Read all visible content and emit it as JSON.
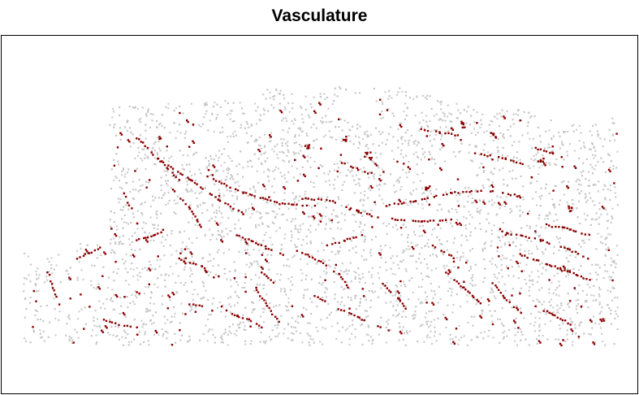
{
  "chart_data": {
    "type": "scatter",
    "title": "Vasculature",
    "xlabel": "",
    "ylabel": "",
    "grid": false,
    "axes_visible": false,
    "legend": "none",
    "colors": {
      "background_cells": "#c8c8c8",
      "vasculature_cells": "#8b0000",
      "frame": "#000000"
    },
    "series": [
      {
        "role": "background",
        "color": "#c8c8c8",
        "marker": "square",
        "description_visible": false
      },
      {
        "role": "highlighted",
        "color": "#8b0000",
        "marker": "square",
        "description_visible": false
      }
    ],
    "vessel_traces": [
      [
        [
          0.19,
          0.21
        ],
        [
          0.23,
          0.3
        ],
        [
          0.26,
          0.37
        ]
      ],
      [
        [
          0.22,
          0.28
        ],
        [
          0.28,
          0.37
        ],
        [
          0.33,
          0.45
        ],
        [
          0.37,
          0.5
        ]
      ],
      [
        [
          0.31,
          0.36
        ],
        [
          0.37,
          0.42
        ],
        [
          0.43,
          0.46
        ],
        [
          0.49,
          0.47
        ]
      ],
      [
        [
          0.47,
          0.44
        ],
        [
          0.52,
          0.45
        ],
        [
          0.55,
          0.48
        ],
        [
          0.6,
          0.52
        ]
      ],
      [
        [
          0.61,
          0.47
        ],
        [
          0.66,
          0.45
        ],
        [
          0.72,
          0.42
        ],
        [
          0.78,
          0.41
        ],
        [
          0.83,
          0.43
        ]
      ],
      [
        [
          0.62,
          0.52
        ],
        [
          0.67,
          0.53
        ],
        [
          0.72,
          0.52
        ]
      ],
      [
        [
          0.76,
          0.27
        ],
        [
          0.81,
          0.29
        ],
        [
          0.84,
          0.31
        ]
      ],
      [
        [
          0.86,
          0.25
        ],
        [
          0.89,
          0.27
        ],
        [
          0.91,
          0.29
        ]
      ],
      [
        [
          0.83,
          0.58
        ],
        [
          0.87,
          0.6
        ],
        [
          0.91,
          0.63
        ],
        [
          0.95,
          0.67
        ]
      ],
      [
        [
          0.83,
          0.65
        ],
        [
          0.88,
          0.69
        ],
        [
          0.92,
          0.72
        ],
        [
          0.96,
          0.76
        ]
      ],
      [
        [
          0.8,
          0.56
        ],
        [
          0.82,
          0.58
        ]
      ],
      [
        [
          0.88,
          0.54
        ],
        [
          0.92,
          0.56
        ],
        [
          0.95,
          0.58
        ]
      ],
      [
        [
          0.19,
          0.6
        ],
        [
          0.22,
          0.58
        ],
        [
          0.24,
          0.56
        ]
      ],
      [
        [
          0.09,
          0.67
        ],
        [
          0.11,
          0.65
        ],
        [
          0.13,
          0.63
        ]
      ],
      [
        [
          0.36,
          0.58
        ],
        [
          0.4,
          0.62
        ],
        [
          0.44,
          0.66
        ]
      ],
      [
        [
          0.46,
          0.64
        ],
        [
          0.5,
          0.68
        ],
        [
          0.53,
          0.73
        ],
        [
          0.55,
          0.79
        ]
      ],
      [
        [
          0.26,
          0.67
        ],
        [
          0.3,
          0.7
        ],
        [
          0.32,
          0.74
        ]
      ],
      [
        [
          0.39,
          0.78
        ],
        [
          0.41,
          0.85
        ],
        [
          0.43,
          0.91
        ]
      ],
      [
        [
          0.49,
          0.81
        ],
        [
          0.53,
          0.86
        ],
        [
          0.57,
          0.9
        ]
      ],
      [
        [
          0.6,
          0.76
        ],
        [
          0.63,
          0.82
        ],
        [
          0.65,
          0.88
        ]
      ],
      [
        [
          0.79,
          0.76
        ],
        [
          0.81,
          0.82
        ],
        [
          0.84,
          0.88
        ]
      ],
      [
        [
          0.71,
          0.72
        ],
        [
          0.74,
          0.78
        ],
        [
          0.77,
          0.84
        ]
      ],
      [
        [
          0.86,
          0.85
        ],
        [
          0.89,
          0.88
        ],
        [
          0.92,
          0.92
        ]
      ],
      [
        [
          0.13,
          0.9
        ],
        [
          0.16,
          0.92
        ],
        [
          0.19,
          0.93
        ]
      ],
      [
        [
          0.27,
          0.84
        ],
        [
          0.3,
          0.85
        ]
      ],
      [
        [
          0.4,
          0.72
        ],
        [
          0.42,
          0.76
        ]
      ],
      [
        [
          0.53,
          0.3
        ],
        [
          0.56,
          0.33
        ],
        [
          0.59,
          0.35
        ]
      ],
      [
        [
          0.67,
          0.18
        ],
        [
          0.7,
          0.19
        ],
        [
          0.73,
          0.2
        ]
      ],
      [
        [
          0.63,
          0.3
        ],
        [
          0.65,
          0.33
        ]
      ],
      [
        [
          0.25,
          0.41
        ],
        [
          0.28,
          0.48
        ],
        [
          0.3,
          0.55
        ]
      ],
      [
        [
          0.04,
          0.72
        ],
        [
          0.05,
          0.78
        ],
        [
          0.06,
          0.84
        ]
      ],
      [
        [
          0.17,
          0.42
        ],
        [
          0.18,
          0.48
        ]
      ],
      [
        [
          0.35,
          0.88
        ],
        [
          0.38,
          0.9
        ],
        [
          0.4,
          0.93
        ]
      ],
      [
        [
          0.69,
          0.62
        ],
        [
          0.72,
          0.66
        ],
        [
          0.73,
          0.7
        ]
      ],
      [
        [
          0.51,
          0.62
        ],
        [
          0.54,
          0.6
        ],
        [
          0.57,
          0.58
        ]
      ],
      [
        [
          0.57,
          0.9
        ],
        [
          0.6,
          0.93
        ]
      ]
    ],
    "density_blobs": [
      [
        [
          0.48,
          0.24
        ],
        [
          0.54,
          0.22
        ],
        [
          0.58,
          0.27
        ]
      ],
      [
        [
          0.74,
          0.16
        ],
        [
          0.79,
          0.2
        ]
      ],
      [
        [
          0.87,
          0.3
        ]
      ],
      [
        [
          0.68,
          0.4
        ]
      ],
      [
        [
          0.92,
          0.48
        ]
      ]
    ]
  }
}
